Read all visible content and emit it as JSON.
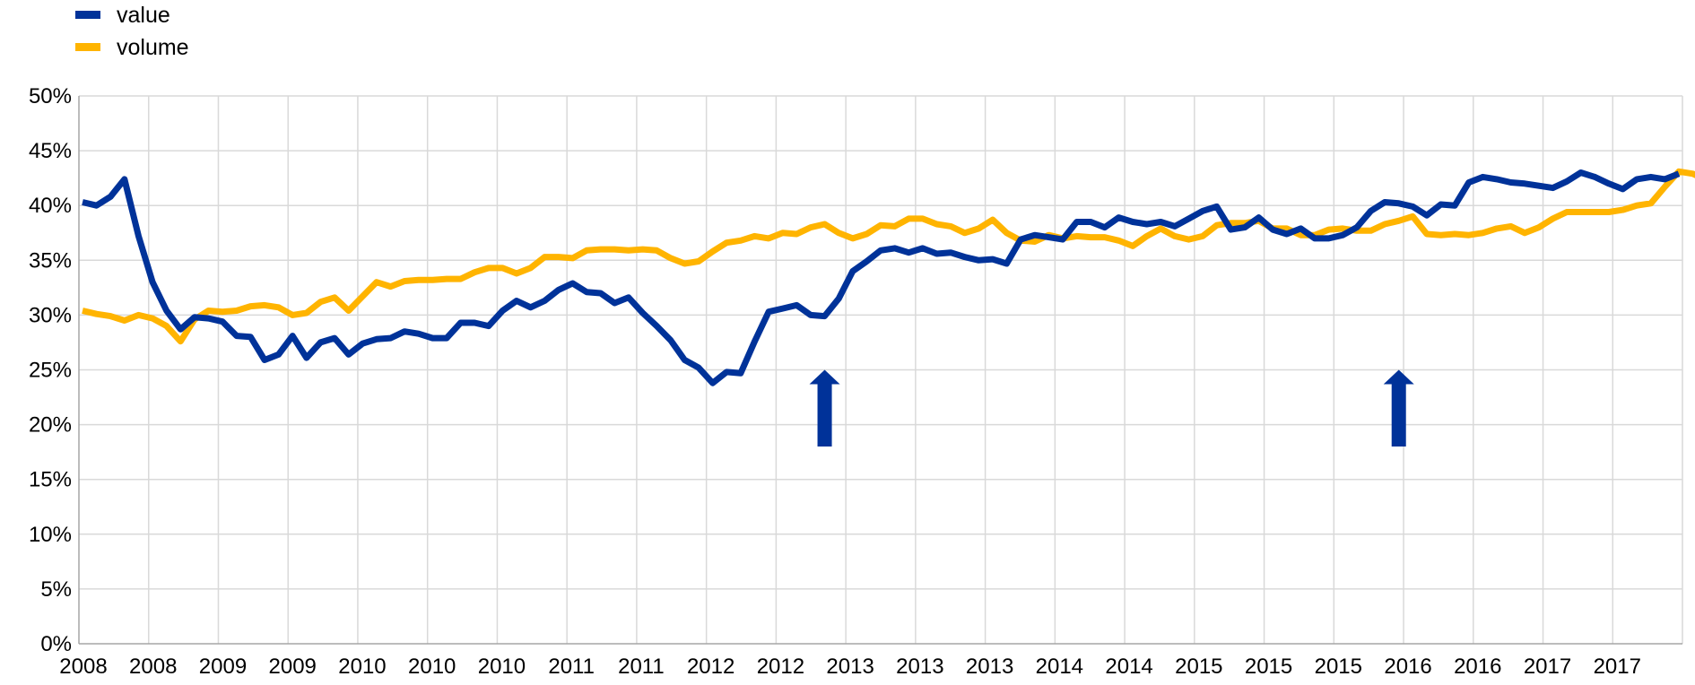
{
  "chart_data": {
    "type": "line",
    "title": "",
    "xlabel": "",
    "ylabel": "",
    "ylim": [
      0,
      50
    ],
    "y_ticks": [
      "0%",
      "5%",
      "10%",
      "15%",
      "20%",
      "25%",
      "30%",
      "35%",
      "40%",
      "45%",
      "50%"
    ],
    "x_tick_labels": [
      "2008",
      "2008",
      "2009",
      "2009",
      "2010",
      "2010",
      "2010",
      "2011",
      "2011",
      "2012",
      "2012",
      "2013",
      "2013",
      "2013",
      "2014",
      "2014",
      "2015",
      "2015",
      "2015",
      "2016",
      "2016",
      "2017",
      "2017"
    ],
    "grid": true,
    "legend_position": "top-left",
    "colors": {
      "value": "#003299",
      "volume": "#FFB400",
      "grid": "#D9D9D9",
      "arrow": "#003299"
    },
    "series": [
      {
        "name": "value",
        "values": [
          40.3,
          40.0,
          40.8,
          42.4,
          37.2,
          33.0,
          30.4,
          28.7,
          29.8,
          29.7,
          29.4,
          28.1,
          28.0,
          25.9,
          26.4,
          28.1,
          26.1,
          27.5,
          27.9,
          26.4,
          27.4,
          27.8,
          27.9,
          28.5,
          28.3,
          27.9,
          27.9,
          29.3,
          29.3,
          29.0,
          30.4,
          31.3,
          30.7,
          31.3,
          32.3,
          32.9,
          32.1,
          32.0,
          31.1,
          31.6,
          30.2,
          29.0,
          27.7,
          25.9,
          25.2,
          23.8,
          24.8,
          24.7,
          27.6,
          30.3,
          30.6,
          30.9,
          30.0,
          29.9,
          31.5,
          34.0,
          34.9,
          35.9,
          36.1,
          35.7,
          36.1,
          35.6,
          35.7,
          35.3,
          35.0,
          35.1,
          34.7,
          36.9,
          37.3,
          37.1,
          36.9,
          38.5,
          38.5,
          38.0,
          38.9,
          38.5,
          38.3,
          38.5,
          38.1,
          38.8,
          39.5,
          39.9,
          37.8,
          38.0,
          38.9,
          37.8,
          37.4,
          37.9,
          37.0,
          37.0,
          37.3,
          38.0,
          39.5,
          40.3,
          40.2,
          39.9,
          39.1,
          40.1,
          40.0,
          42.1,
          42.6,
          42.4,
          42.1,
          42.0,
          41.8,
          41.6,
          42.2,
          43.0,
          42.6,
          42.0,
          41.5,
          42.4,
          42.6,
          42.4,
          42.9
        ]
      },
      {
        "name": "volume",
        "values": [
          30.4,
          30.1,
          29.9,
          29.5,
          30.0,
          29.7,
          29.0,
          27.6,
          29.6,
          30.4,
          30.3,
          30.4,
          30.8,
          30.9,
          30.7,
          30.0,
          30.2,
          31.2,
          31.6,
          30.4,
          31.7,
          33.0,
          32.6,
          33.1,
          33.2,
          33.2,
          33.3,
          33.3,
          33.9,
          34.3,
          34.3,
          33.8,
          34.3,
          35.3,
          35.3,
          35.2,
          35.9,
          36.0,
          36.0,
          35.9,
          36.0,
          35.9,
          35.2,
          34.7,
          34.9,
          35.8,
          36.6,
          36.8,
          37.2,
          37.0,
          37.5,
          37.4,
          38.0,
          38.3,
          37.5,
          37.0,
          37.4,
          38.2,
          38.1,
          38.8,
          38.8,
          38.3,
          38.1,
          37.5,
          37.9,
          38.7,
          37.5,
          36.8,
          36.7,
          37.3,
          37.0,
          37.2,
          37.1,
          37.1,
          36.8,
          36.3,
          37.2,
          37.9,
          37.2,
          36.9,
          37.2,
          38.2,
          38.4,
          38.4,
          38.6,
          37.9,
          37.9,
          37.3,
          37.3,
          37.8,
          37.9,
          37.7,
          37.7,
          38.3,
          38.6,
          39.0,
          37.4,
          37.3,
          37.4,
          37.3,
          37.5,
          37.9,
          38.1,
          37.5,
          38.0,
          38.8,
          39.4,
          39.4,
          39.4,
          39.4,
          39.6,
          40.0,
          40.2,
          41.7,
          43.1,
          42.9,
          42.3
        ]
      }
    ],
    "annotations": [
      {
        "type": "up-arrow",
        "at_point_index": 53,
        "y_from": 18,
        "y_to": 25
      },
      {
        "type": "up-arrow",
        "at_point_index": 94,
        "y_from": 18,
        "y_to": 25
      }
    ]
  }
}
